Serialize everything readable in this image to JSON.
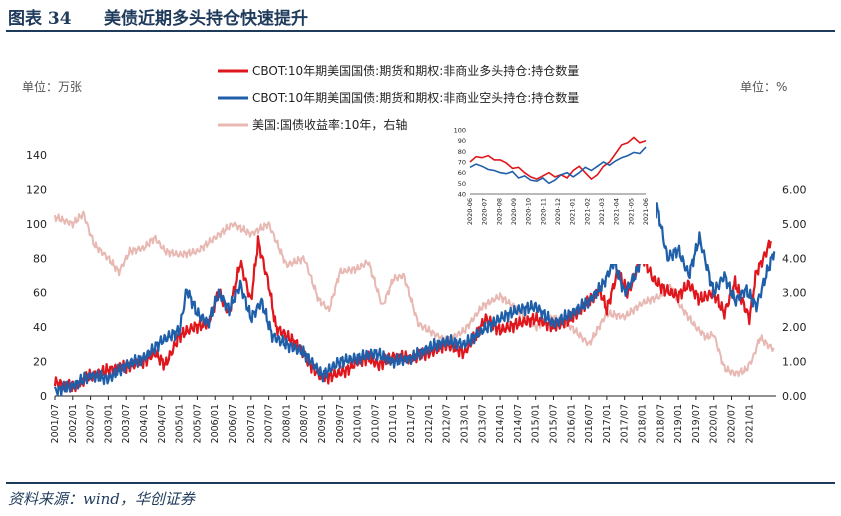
{
  "header": {
    "figure_label": "图表 34",
    "title": "美债近期多头持仓快速提升"
  },
  "footer": {
    "source": "资料来源：wind，华创证券"
  },
  "chart_data": {
    "type": "line",
    "title": "美债近期多头持仓快速提升",
    "left_axis": {
      "unit_label": "单位：万张",
      "ylim": [
        0,
        140
      ],
      "ticks": [
        "0",
        "20",
        "40",
        "60",
        "80",
        "100",
        "120",
        "140"
      ]
    },
    "right_axis": {
      "unit_label": "单位：%",
      "ylim": [
        0,
        7
      ],
      "ticks": [
        "0.00",
        "1.00",
        "2.00",
        "3.00",
        "4.00",
        "5.00",
        "6.00"
      ]
    },
    "x_start": 2001.5,
    "x_end": 2021.75,
    "x_ticks": [
      "2001/07",
      "2002/01",
      "2002/07",
      "2003/01",
      "2003/07",
      "2004/01",
      "2004/07",
      "2005/01",
      "2005/07",
      "2006/01",
      "2006/07",
      "2007/01",
      "2007/07",
      "2008/01",
      "2008/07",
      "2009/01",
      "2009/07",
      "2010/01",
      "2010/07",
      "2011/01",
      "2011/07",
      "2012/01",
      "2012/07",
      "2013/01",
      "2013/07",
      "2014/01",
      "2014/07",
      "2015/01",
      "2015/07",
      "2016/01",
      "2016/07",
      "2017/01",
      "2017/07",
      "2018/01",
      "2018/07",
      "2019/01",
      "2019/07",
      "2020/01",
      "2020/07",
      "2021/01"
    ],
    "series": [
      {
        "name": "CBOT:10年期美国国债:期货和期权:非商业多头持仓:持仓数量",
        "color": "#e0161d",
        "axis": "left",
        "x": [
          2001.5,
          2002.0,
          2002.5,
          2003.0,
          2003.5,
          2004.0,
          2004.3,
          2004.6,
          2005.0,
          2005.4,
          2005.8,
          2006.1,
          2006.4,
          2006.7,
          2007.0,
          2007.2,
          2007.5,
          2007.7,
          2008.0,
          2008.3,
          2008.6,
          2009.0,
          2009.3,
          2009.7,
          2010.0,
          2010.3,
          2010.6,
          2011.0,
          2011.5,
          2012.0,
          2012.5,
          2013.0,
          2013.3,
          2013.6,
          2014.0,
          2014.5,
          2015.0,
          2015.5,
          2016.0,
          2016.5,
          2016.8,
          2017.0,
          2017.3,
          2017.6,
          2018.0,
          2018.3,
          2018.6,
          2019.0,
          2019.3,
          2019.6,
          2020.0,
          2020.3,
          2020.6,
          2021.0,
          2021.2,
          2021.4,
          2021.6
        ],
        "values": [
          8,
          5,
          12,
          15,
          17,
          20,
          25,
          18,
          35,
          40,
          42,
          60,
          48,
          78,
          55,
          90,
          65,
          40,
          35,
          30,
          20,
          10,
          12,
          15,
          20,
          22,
          18,
          23,
          22,
          25,
          30,
          25,
          35,
          45,
          38,
          42,
          45,
          40,
          45,
          55,
          62,
          50,
          72,
          60,
          82,
          68,
          62,
          58,
          65,
          56,
          60,
          48,
          66,
          45,
          72,
          80,
          90
        ]
      },
      {
        "name": "CBOT:10年期美国国债:期货和期权:非商业空头持仓:持仓数量",
        "color": "#1f5faa",
        "axis": "left",
        "x": [
          2001.5,
          2002.0,
          2002.5,
          2003.0,
          2003.5,
          2004.0,
          2004.5,
          2005.0,
          2005.2,
          2005.5,
          2005.8,
          2006.1,
          2006.4,
          2006.7,
          2007.0,
          2007.3,
          2007.6,
          2008.0,
          2008.5,
          2009.0,
          2009.5,
          2010.0,
          2010.5,
          2011.0,
          2011.5,
          2012.0,
          2012.5,
          2013.0,
          2013.5,
          2014.0,
          2014.5,
          2015.0,
          2015.5,
          2016.0,
          2016.5,
          2016.9,
          2017.2,
          2017.5,
          2017.8,
          2018.0,
          2018.2,
          2018.4,
          2018.7,
          2019.0,
          2019.3,
          2019.6,
          2020.0,
          2020.3,
          2020.6,
          2020.9,
          2021.2,
          2021.5,
          2021.7
        ],
        "values": [
          3,
          6,
          12,
          10,
          18,
          22,
          32,
          38,
          62,
          48,
          42,
          60,
          50,
          65,
          45,
          55,
          35,
          30,
          25,
          12,
          20,
          22,
          25,
          20,
          22,
          28,
          32,
          30,
          38,
          45,
          50,
          52,
          42,
          48,
          55,
          65,
          78,
          60,
          70,
          82,
          90,
          110,
          80,
          85,
          70,
          92,
          60,
          70,
          55,
          62,
          52,
          72,
          84
        ]
      },
      {
        "name": "美国:国债收益率:10年，右轴",
        "color": "#e8b8b3",
        "axis": "right",
        "x": [
          2001.5,
          2002.0,
          2002.3,
          2002.6,
          2003.0,
          2003.3,
          2003.6,
          2004.0,
          2004.3,
          2004.6,
          2005.0,
          2005.5,
          2006.0,
          2006.5,
          2007.0,
          2007.5,
          2008.0,
          2008.5,
          2008.9,
          2009.2,
          2009.5,
          2010.0,
          2010.3,
          2010.7,
          2011.0,
          2011.3,
          2011.7,
          2012.0,
          2012.5,
          2013.0,
          2013.5,
          2014.0,
          2014.5,
          2015.0,
          2015.5,
          2016.0,
          2016.5,
          2017.0,
          2017.5,
          2018.0,
          2018.5,
          2018.8,
          2019.0,
          2019.5,
          2019.8,
          2020.0,
          2020.3,
          2020.6,
          2020.9,
          2021.1,
          2021.3,
          2021.5,
          2021.7
        ],
        "values": [
          5.2,
          5.0,
          5.3,
          4.4,
          4.0,
          3.6,
          4.2,
          4.3,
          4.6,
          4.2,
          4.1,
          4.2,
          4.6,
          5.0,
          4.7,
          5.0,
          3.8,
          4.0,
          2.8,
          2.5,
          3.6,
          3.7,
          3.9,
          2.6,
          3.4,
          3.5,
          2.1,
          1.9,
          1.6,
          1.9,
          2.6,
          2.9,
          2.5,
          2.0,
          2.3,
          2.0,
          1.5,
          2.4,
          2.3,
          2.7,
          2.9,
          3.2,
          2.7,
          2.0,
          1.7,
          1.8,
          0.8,
          0.65,
          0.75,
          1.1,
          1.7,
          1.5,
          1.35
        ]
      }
    ],
    "inset": {
      "y_ticks": [
        "40",
        "50",
        "60",
        "70",
        "80",
        "90",
        "100"
      ],
      "ylim": [
        40,
        100
      ],
      "x_ticks": [
        "2020-06",
        "2020-07",
        "2020-08",
        "2020-09",
        "2020-10",
        "2020-11",
        "2020-12",
        "2021-01",
        "2021-02",
        "2021-03",
        "2021-04",
        "2021-05",
        "2021-06"
      ],
      "series": [
        {
          "color": "#e0161d",
          "values": [
            70,
            75,
            74,
            76,
            72,
            72,
            69,
            64,
            65,
            60,
            56,
            54,
            57,
            60,
            56,
            58,
            55,
            62,
            66,
            60,
            54,
            58,
            66,
            70,
            78,
            86,
            88,
            93,
            88,
            90
          ]
        },
        {
          "color": "#1f5faa",
          "values": [
            65,
            68,
            66,
            63,
            62,
            60,
            59,
            61,
            55,
            57,
            53,
            52,
            55,
            50,
            53,
            58,
            60,
            56,
            60,
            65,
            62,
            66,
            70,
            67,
            71,
            74,
            76,
            79,
            78,
            84
          ]
        }
      ]
    }
  }
}
